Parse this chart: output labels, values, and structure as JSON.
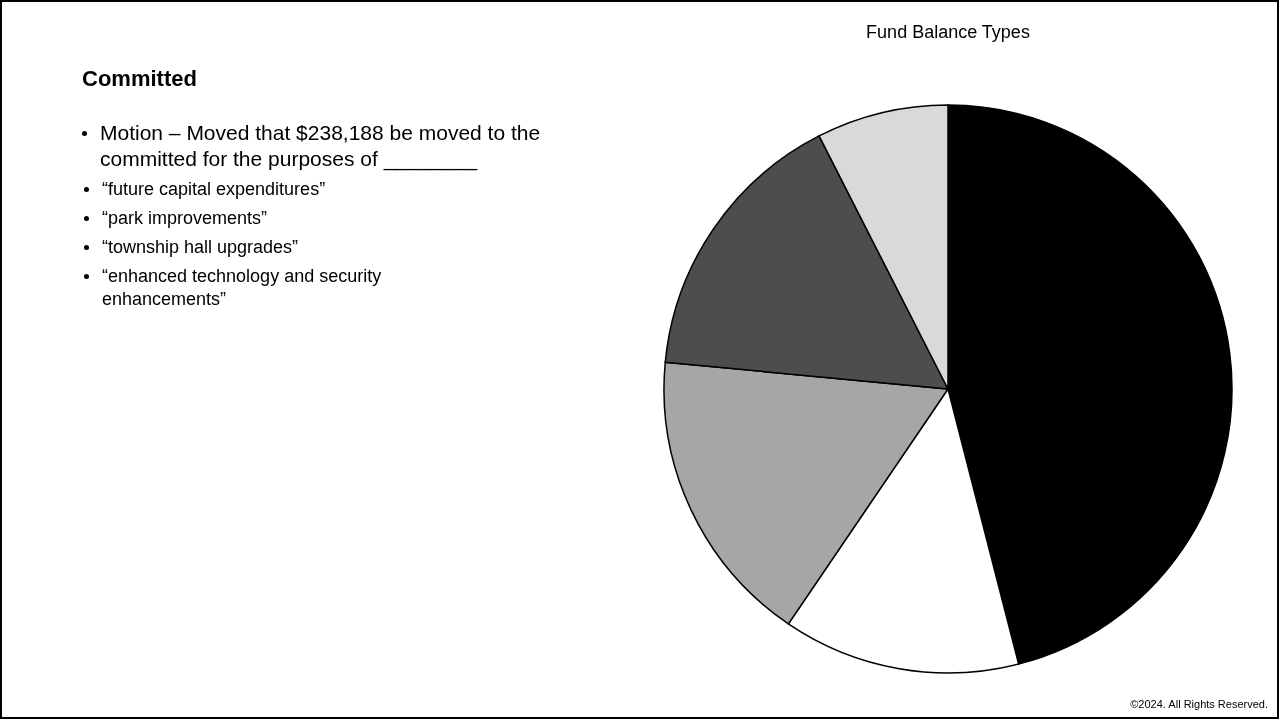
{
  "chart_data": {
    "type": "pie",
    "title": "Fund Balance Types",
    "categories": [
      null,
      null,
      null,
      null,
      null
    ],
    "values": [
      46,
      13.5,
      17,
      16,
      7.5
    ],
    "colors": [
      "#000000",
      "#ffffff",
      "#a6a6a6",
      "#4d4d4d",
      "#d9d9d9"
    ],
    "annotations": [
      "Committed",
      "Motion – Moved that $238,188 be  moved to the committed for the purposes of ________",
      "“future capital expenditures”",
      "“park improvements”",
      "“township hall upgrades”",
      "“enhanced technology and security enhancements”",
      "©2024. All Rights Reserved."
    ]
  }
}
